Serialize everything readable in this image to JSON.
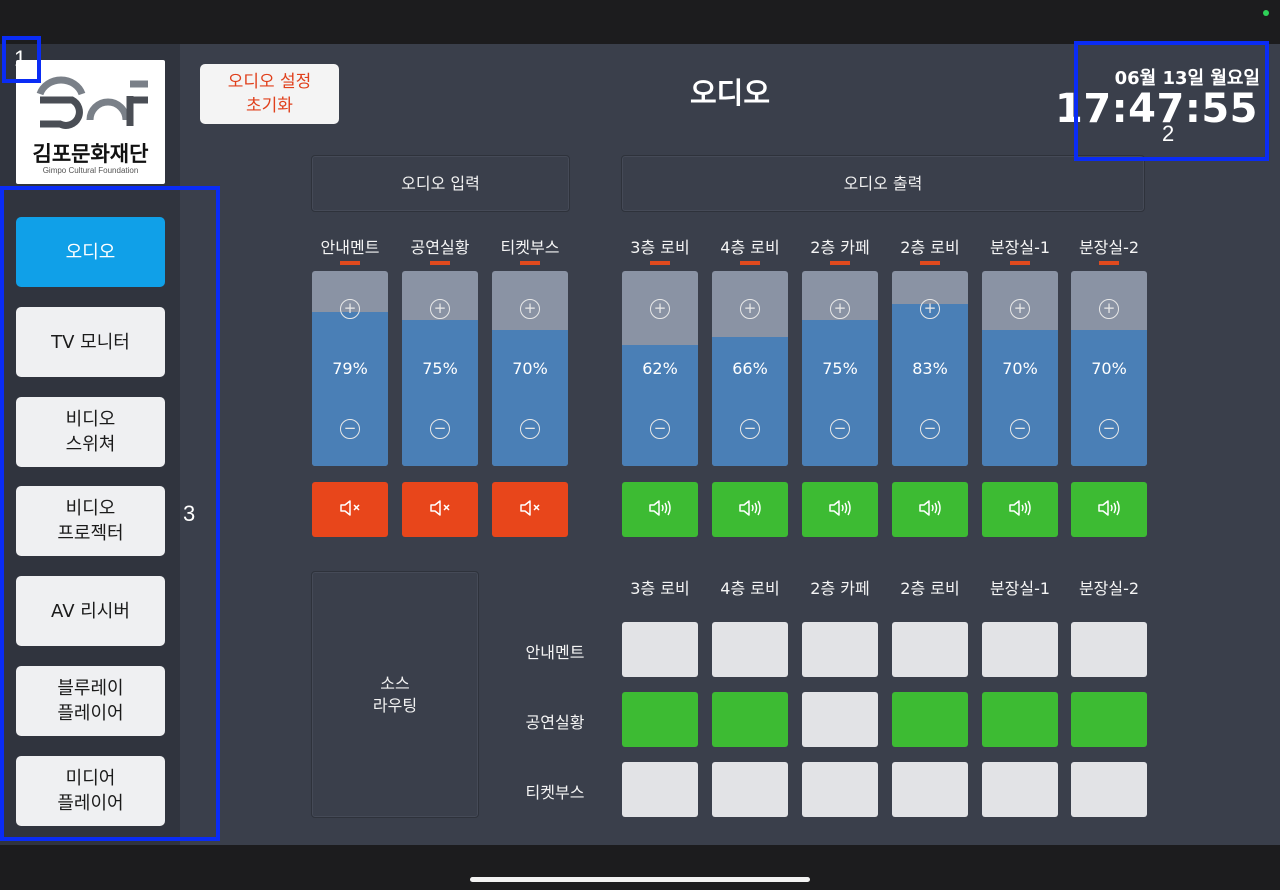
{
  "app": {
    "logo_kr": "김포문화재단",
    "logo_en": "Gimpo Cultural Foundation",
    "page_title": "오디오",
    "reset_button": "오디오 설정\n초기화",
    "date": "06월 13일 월요일",
    "time": "17:47:55"
  },
  "sidebar": {
    "items": [
      {
        "label": "오디오",
        "active": true
      },
      {
        "label": "TV 모니터",
        "active": false
      },
      {
        "label": "비디오\n스위쳐",
        "active": false
      },
      {
        "label": "비디오\n프로젝터",
        "active": false
      },
      {
        "label": "AV 리시버",
        "active": false
      },
      {
        "label": "블루레이\n플레이어",
        "active": false
      },
      {
        "label": "미디어\n플레이어",
        "active": false
      }
    ]
  },
  "audio_input": {
    "header": "오디오 입력",
    "channels": [
      {
        "name": "안내멘트",
        "level": 79,
        "level_text": "79%",
        "muted": true
      },
      {
        "name": "공연실황",
        "level": 75,
        "level_text": "75%",
        "muted": true
      },
      {
        "name": "티켓부스",
        "level": 70,
        "level_text": "70%",
        "muted": true
      }
    ]
  },
  "audio_output": {
    "header": "오디오 출력",
    "channels": [
      {
        "name": "3층 로비",
        "level": 62,
        "level_text": "62%",
        "muted": false
      },
      {
        "name": "4층 로비",
        "level": 66,
        "level_text": "66%",
        "muted": false
      },
      {
        "name": "2층 카페",
        "level": 75,
        "level_text": "75%",
        "muted": false
      },
      {
        "name": "2층 로비",
        "level": 83,
        "level_text": "83%",
        "muted": false
      },
      {
        "name": "분장실-1",
        "level": 70,
        "level_text": "70%",
        "muted": false
      },
      {
        "name": "분장실-2",
        "level": 70,
        "level_text": "70%",
        "muted": false
      }
    ]
  },
  "routing": {
    "label": "소스\n라우팅",
    "columns": [
      "3층 로비",
      "4층 로비",
      "2층 카페",
      "2층 로비",
      "분장실-1",
      "분장실-2"
    ],
    "rows": [
      {
        "name": "안내멘트",
        "active": [
          false,
          false,
          false,
          false,
          false,
          false
        ]
      },
      {
        "name": "공연실황",
        "active": [
          true,
          true,
          false,
          true,
          true,
          true
        ]
      },
      {
        "name": "티켓부스",
        "active": [
          false,
          false,
          false,
          false,
          false,
          false
        ]
      }
    ]
  },
  "annotations": [
    {
      "number": "1"
    },
    {
      "number": "2"
    },
    {
      "number": "3"
    }
  ],
  "colors": {
    "background": "#3a3f4b",
    "accent_blue": "#10a0e8",
    "fader_fill": "#4a7fb6",
    "mute_red": "#e8461b",
    "on_green": "#3dbb33",
    "annotation_blue": "#0a2cf5"
  },
  "icons": {
    "plus": "plus-circle-icon",
    "minus": "minus-circle-icon",
    "muted": "speaker-muted-icon",
    "unmuted": "speaker-on-icon"
  }
}
